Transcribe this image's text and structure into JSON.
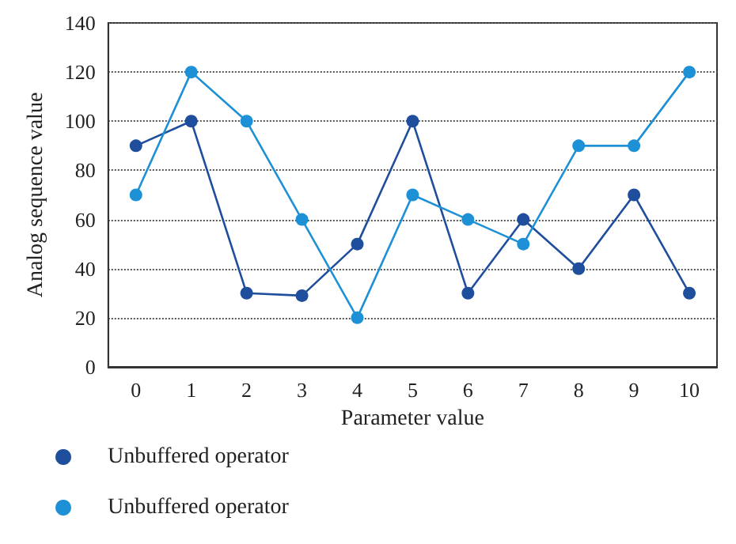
{
  "chart_data": {
    "type": "line",
    "xlabel": "Parameter value",
    "ylabel": "Analog sequence value",
    "categories": [
      "0",
      "1",
      "2",
      "3",
      "4",
      "5",
      "6",
      "7",
      "8",
      "9",
      "10"
    ],
    "series": [
      {
        "name": "Unbuffered operator",
        "color": "#1f4e9c",
        "values": [
          90,
          100,
          30,
          29,
          50,
          100,
          30,
          60,
          40,
          70,
          30
        ]
      },
      {
        "name": "Unbuffered operator",
        "color": "#1e91d6",
        "values": [
          70,
          120,
          100,
          60,
          20,
          70,
          60,
          50,
          90,
          90,
          120
        ]
      }
    ],
    "ylim": [
      0,
      140
    ],
    "yticks": [
      0,
      20,
      40,
      60,
      80,
      100,
      120,
      140
    ],
    "grid": "y",
    "legend": "bottom",
    "marker": "circle",
    "line_style": "solid"
  }
}
